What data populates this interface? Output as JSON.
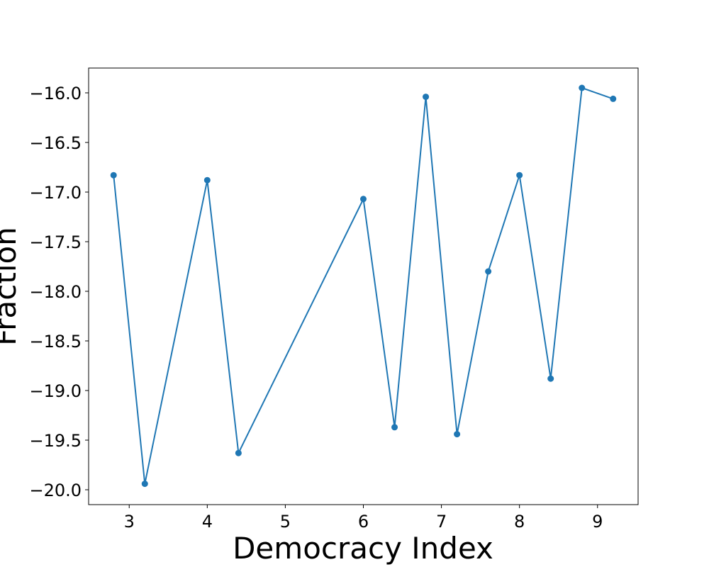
{
  "chart_data": {
    "type": "line",
    "title": "",
    "xlabel": "Democracy Index",
    "ylabel": "Fraction",
    "xlim": [
      2.48,
      9.52
    ],
    "ylim": [
      -20.15,
      -15.75
    ],
    "x_ticks": [
      3,
      4,
      5,
      6,
      7,
      8,
      9
    ],
    "x_tick_labels": [
      "3",
      "4",
      "5",
      "6",
      "7",
      "8",
      "9"
    ],
    "y_ticks": [
      -20.0,
      -19.5,
      -19.0,
      -18.5,
      -18.0,
      -17.5,
      -17.0,
      -16.5,
      -16.0
    ],
    "y_tick_labels": [
      "−20.0",
      "−19.5",
      "−19.0",
      "−18.5",
      "−18.0",
      "−17.5",
      "−17.0",
      "−16.5",
      "−16.0"
    ],
    "grid": false,
    "legend": "none",
    "series": [
      {
        "color": "#1f77b4",
        "marker": "circle",
        "x": [
          2.8,
          3.2,
          4.0,
          4.4,
          6.0,
          6.4,
          6.8,
          7.2,
          7.6,
          8.0,
          8.4,
          8.8,
          9.2
        ],
        "y": [
          -16.83,
          -19.94,
          -16.88,
          -19.63,
          -17.07,
          -19.37,
          -16.04,
          -19.44,
          -17.8,
          -16.83,
          -18.88,
          -15.95,
          -16.06
        ]
      }
    ]
  }
}
